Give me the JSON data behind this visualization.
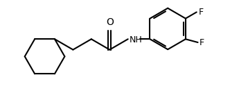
{
  "bg_color": "#ffffff",
  "line_color": "#000000",
  "line_width": 1.5,
  "font_size": 9,
  "atoms": {
    "O_label": "O",
    "NH_label": "NH",
    "F1_label": "F",
    "F2_label": "F"
  },
  "xlim": [
    0.0,
    7.8
  ],
  "ylim": [
    0.6,
    4.2
  ]
}
